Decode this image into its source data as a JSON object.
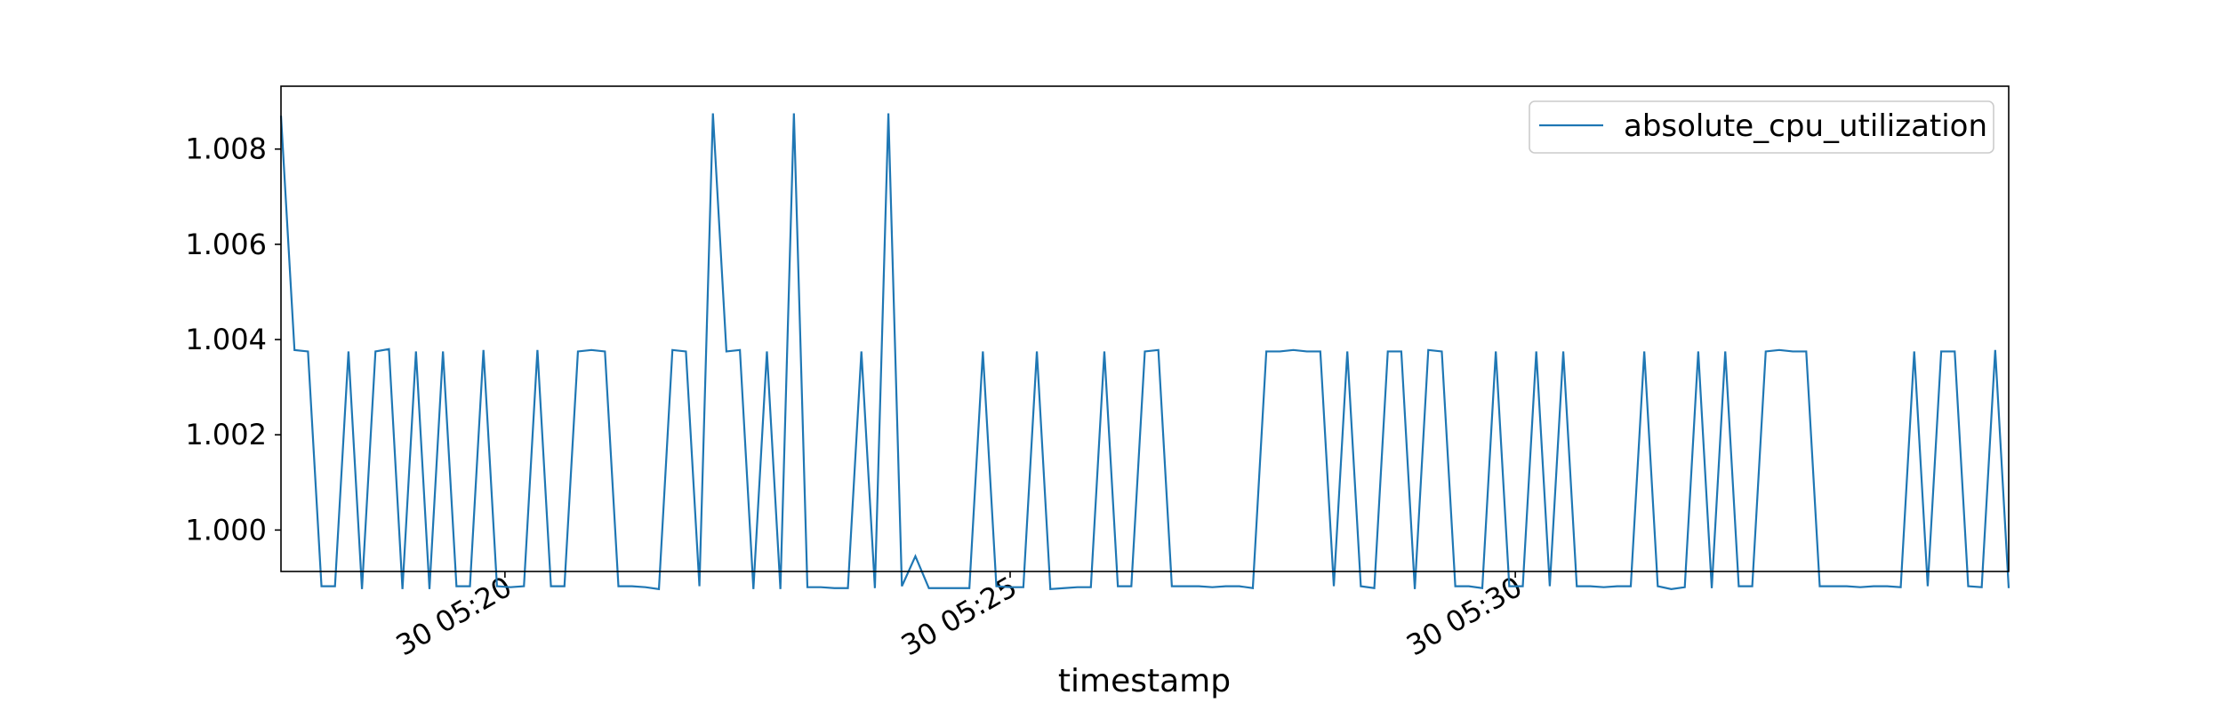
{
  "chart_data": {
    "type": "line",
    "title": "",
    "xlabel": "timestamp",
    "ylabel": "",
    "x_start": "30 05:17:47",
    "x_end": "30 05:34:53",
    "xlim": [
      "30 05:17:47",
      "30 05:34:53"
    ],
    "ylim": [
      0.99913,
      1.00932
    ],
    "x_ticks": [
      "30 05:20",
      "30 05:25",
      "30 05:30"
    ],
    "y_ticks": [
      "1.000",
      "1.002",
      "1.004",
      "1.006",
      "1.008"
    ],
    "legend": {
      "position": "top-right",
      "entries": [
        "absolute_cpu_utilization"
      ]
    },
    "grid": false,
    "series": [
      {
        "name": "absolute_cpu_utilization",
        "color": "#1f77b4",
        "values": [
          1.0087,
          1.00378,
          1.00375,
          0.99882,
          0.99882,
          1.00375,
          0.99876,
          1.00375,
          1.0038,
          0.99876,
          1.00375,
          0.99876,
          1.00375,
          0.99882,
          0.99882,
          1.00378,
          0.99882,
          0.9988,
          0.99882,
          1.00378,
          0.99882,
          0.99882,
          1.00375,
          1.00378,
          1.00375,
          0.99882,
          0.99882,
          0.9988,
          0.99876,
          1.00378,
          1.00375,
          0.99882,
          1.00875,
          1.00375,
          1.00378,
          0.99876,
          1.00375,
          0.99876,
          1.00875,
          0.9988,
          0.9988,
          0.99878,
          0.99878,
          1.00375,
          0.99878,
          1.00875,
          0.99882,
          0.99945,
          0.99878,
          0.99878,
          0.99878,
          0.99878,
          1.00375,
          0.99882,
          0.9988,
          0.9988,
          1.00375,
          0.99876,
          0.99878,
          0.9988,
          0.9988,
          1.00375,
          0.99882,
          0.99882,
          1.00375,
          1.00378,
          0.99882,
          0.99882,
          0.99882,
          0.9988,
          0.99882,
          0.99882,
          0.99878,
          1.00375,
          1.00375,
          1.00378,
          1.00375,
          1.00375,
          0.99882,
          1.00375,
          0.99882,
          0.99878,
          1.00375,
          1.00375,
          0.99876,
          1.00378,
          1.00375,
          0.99882,
          0.99882,
          0.99878,
          1.00375,
          0.99882,
          0.99882,
          1.00375,
          0.99882,
          1.00375,
          0.99882,
          0.99882,
          0.9988,
          0.99882,
          0.99882,
          1.00375,
          0.99882,
          0.99876,
          0.9988,
          1.00375,
          0.99878,
          1.00375,
          0.99882,
          0.99882,
          1.00375,
          1.00378,
          1.00375,
          1.00375,
          0.99882,
          0.99882,
          0.99882,
          0.9988,
          0.99882,
          0.99882,
          0.9988,
          1.00375,
          0.99882,
          1.00375,
          1.00375,
          0.99882,
          0.9988,
          1.00378,
          0.99878
        ]
      }
    ]
  }
}
